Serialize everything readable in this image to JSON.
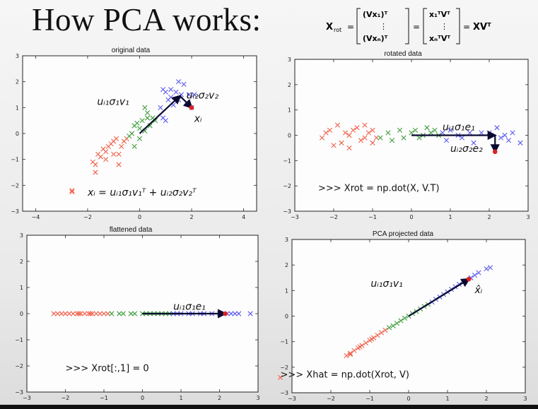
{
  "slide": {
    "title": "How PCA works:",
    "formula": {
      "lhs": "X",
      "lhs_sub": "rot",
      "m1_rows": [
        "(Vx₁)ᵀ",
        "⋮",
        "(Vxₙ)ᵀ"
      ],
      "m2_rows": [
        "x₁ᵀVᵀ",
        "⋮",
        "xₙᵀVᵀ"
      ],
      "eq": "=",
      "rhs": "XVᵀ"
    }
  },
  "colors": {
    "red": "#f0604a",
    "green": "#3d9d3d",
    "blue": "#5b5bf0",
    "point": "#dd2222",
    "arrow": "#0a0a30"
  },
  "chart_data": [
    {
      "type": "scatter",
      "title": "original data",
      "xlim": [
        -4.5,
        4.5
      ],
      "ylim": [
        -3,
        3
      ],
      "xticks": [
        -4,
        -2,
        0,
        2,
        4
      ],
      "yticks": [
        -3,
        -2,
        -1,
        0,
        1,
        2,
        3
      ],
      "series": [
        {
          "color": "red",
          "points": [
            [
              -2.6,
              -2.2
            ],
            [
              -1.8,
              -1.1
            ],
            [
              -1.7,
              -1.5
            ],
            [
              -1.7,
              -1.2
            ],
            [
              -1.6,
              -0.8
            ],
            [
              -1.5,
              -0.9
            ],
            [
              -1.4,
              -0.6
            ],
            [
              -1.3,
              -0.7
            ],
            [
              -1.2,
              -0.5
            ],
            [
              -1.1,
              -0.4
            ],
            [
              -1.0,
              -0.3
            ],
            [
              -1.0,
              -0.8
            ],
            [
              -0.9,
              -0.2
            ],
            [
              -0.8,
              -1.2
            ],
            [
              -0.7,
              -0.5
            ],
            [
              -0.6,
              -0.3
            ],
            [
              -0.5,
              -0.2
            ],
            [
              -1.3,
              -1.0
            ],
            [
              -0.8,
              -0.8
            ]
          ]
        },
        {
          "color": "green",
          "points": [
            [
              -0.4,
              -0.1
            ],
            [
              -0.3,
              0.0
            ],
            [
              -0.2,
              -0.5
            ],
            [
              -0.1,
              0.4
            ],
            [
              0.0,
              0.2
            ],
            [
              0.1,
              0.5
            ],
            [
              0.2,
              0.1
            ],
            [
              0.3,
              0.6
            ],
            [
              0.3,
              0.8
            ],
            [
              0.4,
              0.3
            ],
            [
              0.5,
              0.6
            ],
            [
              0.6,
              0.5
            ],
            [
              0.2,
              1.0
            ],
            [
              -0.2,
              0.3
            ],
            [
              0.0,
              -0.2
            ]
          ]
        },
        {
          "color": "blue",
          "points": [
            [
              0.8,
              1.0
            ],
            [
              0.9,
              0.6
            ],
            [
              1.0,
              0.5
            ],
            [
              1.1,
              1.3
            ],
            [
              1.2,
              1.4
            ],
            [
              1.3,
              1.1
            ],
            [
              1.4,
              1.6
            ],
            [
              1.5,
              1.3
            ],
            [
              1.6,
              1.5
            ],
            [
              1.7,
              1.9
            ],
            [
              1.8,
              1.2
            ],
            [
              1.9,
              1.5
            ],
            [
              2.0,
              1.0
            ],
            [
              2.1,
              1.5
            ],
            [
              1.0,
              1.6
            ],
            [
              0.9,
              1.7
            ],
            [
              1.5,
              2.0
            ],
            [
              1.2,
              1.7
            ]
          ]
        }
      ],
      "highlight": [
        2.0,
        1.0
      ],
      "arrows": [
        {
          "from": [
            0,
            0
          ],
          "to": [
            1.55,
            1.45
          ]
        },
        {
          "from": [
            1.55,
            1.45
          ],
          "to": [
            2.0,
            1.0
          ]
        }
      ],
      "labels": [
        {
          "text": "uᵢ₁σ₁v₁",
          "at": [
            -0.4,
            1.1
          ],
          "anchor": "end"
        },
        {
          "text": "uᵢ₂σ₂v₂",
          "at": [
            1.8,
            1.35
          ],
          "anchor": "start"
        },
        {
          "text": "xᵢ",
          "at": [
            2.1,
            0.45
          ],
          "anchor": "start"
        },
        {
          "text": "xᵢ = uᵢ₁σ₁v₁ᵀ + uᵢ₂σ₂v₂ᵀ",
          "at": [
            -2.0,
            -2.4
          ],
          "anchor": "start"
        }
      ],
      "legend": {
        "at": [
          -2.6,
          -2.25
        ]
      }
    },
    {
      "type": "scatter",
      "title": "rotated data",
      "xlim": [
        -3,
        3
      ],
      "ylim": [
        -3,
        3
      ],
      "xticks": [
        -3,
        -2,
        -1,
        0,
        1,
        2,
        3
      ],
      "yticks": [
        -3,
        -2,
        -1,
        0,
        1,
        2,
        3
      ],
      "series": [
        {
          "color": "red",
          "points": [
            [
              -2.3,
              -0.1
            ],
            [
              -2.1,
              0.2
            ],
            [
              -2.0,
              -0.4
            ],
            [
              -1.9,
              0.4
            ],
            [
              -1.8,
              -0.3
            ],
            [
              -1.7,
              0.1
            ],
            [
              -1.6,
              -0.5
            ],
            [
              -1.5,
              0.2
            ],
            [
              -1.4,
              0.3
            ],
            [
              -1.3,
              -0.2
            ],
            [
              -1.2,
              0.4
            ],
            [
              -1.1,
              0.1
            ],
            [
              -1.0,
              -0.3
            ],
            [
              -1.0,
              0.2
            ],
            [
              -0.9,
              -0.1
            ],
            [
              -2.2,
              0.1
            ],
            [
              -1.6,
              0.0
            ],
            [
              -1.2,
              -0.1
            ]
          ]
        },
        {
          "color": "green",
          "points": [
            [
              -0.8,
              -0.1
            ],
            [
              -0.6,
              0.1
            ],
            [
              -0.5,
              -0.2
            ],
            [
              -0.3,
              0.2
            ],
            [
              -0.2,
              -0.1
            ],
            [
              0.0,
              0.1
            ],
            [
              0.1,
              0.2
            ],
            [
              0.2,
              -0.1
            ],
            [
              0.3,
              0.0
            ],
            [
              0.4,
              0.3
            ],
            [
              0.5,
              0.1
            ],
            [
              0.6,
              0.2
            ],
            [
              0.7,
              0.0
            ]
          ]
        },
        {
          "color": "blue",
          "points": [
            [
              0.8,
              0.1
            ],
            [
              0.9,
              -0.2
            ],
            [
              1.0,
              0.2
            ],
            [
              1.2,
              0.0
            ],
            [
              1.3,
              -0.1
            ],
            [
              1.5,
              0.1
            ],
            [
              1.6,
              -0.3
            ],
            [
              1.8,
              0.1
            ],
            [
              2.0,
              0.1
            ],
            [
              2.2,
              0.3
            ],
            [
              2.3,
              -0.1
            ],
            [
              2.4,
              0.0
            ],
            [
              2.5,
              -0.2
            ],
            [
              2.8,
              -0.3
            ],
            [
              2.6,
              0.1
            ]
          ]
        }
      ],
      "highlight": [
        2.15,
        -0.65
      ],
      "arrows": [
        {
          "from": [
            0,
            0
          ],
          "to": [
            2.15,
            0.0
          ]
        },
        {
          "from": [
            2.15,
            0.0
          ],
          "to": [
            2.15,
            -0.65
          ]
        }
      ],
      "labels": [
        {
          "text": "uᵢ₁σ₁e₁",
          "at": [
            0.8,
            0.2
          ],
          "anchor": "start"
        },
        {
          "text": "uᵢ₂σ₂e₂",
          "at": [
            1.0,
            -0.65
          ],
          "anchor": "start"
        },
        {
          "text": ">>> Xrot = np.dot(X, V.T)",
          "at": [
            -2.4,
            -2.2
          ],
          "anchor": "start",
          "mono": true
        }
      ]
    },
    {
      "type": "scatter",
      "title": "flattened data",
      "xlim": [
        -3,
        3
      ],
      "ylim": [
        -3,
        3
      ],
      "xticks": [
        -3,
        -2,
        -1,
        0,
        1,
        2,
        3
      ],
      "yticks": [
        -3,
        -2,
        -1,
        0,
        1,
        2,
        3
      ],
      "series": [
        {
          "color": "red",
          "points": [
            [
              -2.3,
              0
            ],
            [
              -2.1,
              0
            ],
            [
              -2.0,
              0
            ],
            [
              -1.9,
              0
            ],
            [
              -1.8,
              0
            ],
            [
              -1.7,
              0
            ],
            [
              -1.6,
              0
            ],
            [
              -1.5,
              0
            ],
            [
              -1.4,
              0
            ],
            [
              -1.3,
              0
            ],
            [
              -1.2,
              0
            ],
            [
              -1.1,
              0
            ],
            [
              -1.0,
              0
            ],
            [
              -0.9,
              0
            ],
            [
              -2.2,
              0
            ],
            [
              -1.65,
              0
            ],
            [
              -1.35,
              0
            ]
          ]
        },
        {
          "color": "green",
          "points": [
            [
              -0.8,
              0
            ],
            [
              -0.6,
              0
            ],
            [
              -0.5,
              0
            ],
            [
              -0.3,
              0
            ],
            [
              -0.2,
              0
            ],
            [
              0.0,
              0
            ],
            [
              0.1,
              0
            ],
            [
              0.2,
              0
            ],
            [
              0.3,
              0
            ],
            [
              0.4,
              0
            ],
            [
              0.5,
              0
            ],
            [
              0.6,
              0
            ],
            [
              0.7,
              0
            ]
          ]
        },
        {
          "color": "blue",
          "points": [
            [
              0.8,
              0
            ],
            [
              0.9,
              0
            ],
            [
              1.0,
              0
            ],
            [
              1.2,
              0
            ],
            [
              1.3,
              0
            ],
            [
              1.5,
              0
            ],
            [
              1.6,
              0
            ],
            [
              1.8,
              0
            ],
            [
              2.0,
              0
            ],
            [
              2.2,
              0
            ],
            [
              2.3,
              0
            ],
            [
              2.4,
              0
            ],
            [
              2.5,
              0
            ],
            [
              2.8,
              0
            ]
          ]
        }
      ],
      "highlight": [
        2.15,
        0
      ],
      "arrows": [
        {
          "from": [
            0,
            0
          ],
          "to": [
            2.15,
            0
          ]
        }
      ],
      "labels": [
        {
          "text": "uᵢ₁σ₁e₁",
          "at": [
            0.8,
            0.15
          ],
          "anchor": "start"
        },
        {
          "text": ">>> Xrot[:,1] = 0",
          "at": [
            -2.0,
            -2.2
          ],
          "anchor": "start",
          "mono": true
        }
      ]
    },
    {
      "type": "scatter",
      "title": "PCA projected data",
      "xlim": [
        -3,
        3
      ],
      "ylim": [
        -3,
        3
      ],
      "xticks": [
        -3,
        -2,
        -1,
        0,
        1,
        2,
        3
      ],
      "yticks": [
        -3,
        -2,
        -1,
        0,
        1,
        2,
        3
      ],
      "series": [
        {
          "color": "red",
          "points": [
            [
              -1.6,
              -1.55
            ],
            [
              -1.5,
              -1.45
            ],
            [
              -1.4,
              -1.35
            ],
            [
              -1.3,
              -1.25
            ],
            [
              -1.2,
              -1.15
            ],
            [
              -1.1,
              -1.05
            ],
            [
              -1.0,
              -0.95
            ],
            [
              -0.9,
              -0.85
            ],
            [
              -0.8,
              -0.75
            ],
            [
              -0.7,
              -0.65
            ],
            [
              -0.6,
              -0.55
            ],
            [
              -1.5,
              -1.5
            ],
            [
              -1.25,
              -1.2
            ],
            [
              -0.95,
              -0.9
            ]
          ]
        },
        {
          "color": "green",
          "points": [
            [
              -0.5,
              -0.45
            ],
            [
              -0.4,
              -0.38
            ],
            [
              -0.3,
              -0.28
            ],
            [
              -0.2,
              -0.18
            ],
            [
              -0.1,
              -0.08
            ],
            [
              0.0,
              0.0
            ],
            [
              0.1,
              0.1
            ],
            [
              0.2,
              0.18
            ],
            [
              0.3,
              0.28
            ],
            [
              0.4,
              0.38
            ],
            [
              0.5,
              0.46
            ]
          ]
        },
        {
          "color": "blue",
          "points": [
            [
              0.6,
              0.55
            ],
            [
              0.7,
              0.66
            ],
            [
              0.8,
              0.75
            ],
            [
              0.9,
              0.85
            ],
            [
              1.0,
              0.95
            ],
            [
              1.1,
              1.05
            ],
            [
              1.2,
              1.15
            ],
            [
              1.3,
              1.25
            ],
            [
              1.4,
              1.35
            ],
            [
              1.6,
              1.5
            ],
            [
              1.8,
              1.7
            ],
            [
              2.0,
              1.85
            ],
            [
              2.1,
              1.9
            ],
            [
              1.7,
              1.6
            ]
          ]
        }
      ],
      "highlight": [
        1.55,
        1.45
      ],
      "arrows": [
        {
          "from": [
            0,
            0
          ],
          "to": [
            1.55,
            1.45
          ]
        }
      ],
      "labels": [
        {
          "text": "uᵢ₁σ₁v₁",
          "at": [
            -0.15,
            1.15
          ],
          "anchor": "end"
        },
        {
          "text": "x̂ᵢ",
          "at": [
            1.7,
            0.9
          ],
          "anchor": "start"
        },
        {
          "text": ">>> Xhat = np.dot(Xrot, V)",
          "at": [
            -3.3,
            -2.4
          ],
          "anchor": "start",
          "mono": true
        }
      ],
      "legend": {
        "at": [
          -3.3,
          -2.4
        ]
      }
    }
  ]
}
